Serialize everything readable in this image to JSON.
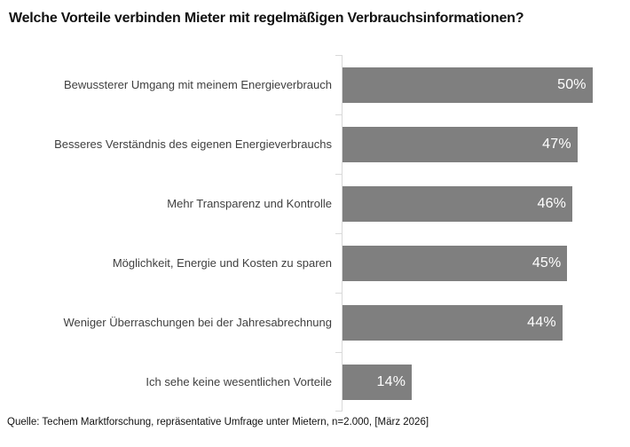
{
  "title": "Welche Vorteile verbinden Mieter mit regelmäßigen Verbrauchsinformationen?",
  "source_note": "Quelle: Techem Marktforschung, repräsentative Umfrage unter Mietern, n=2.000, [März 2026]",
  "colors": {
    "bar": "#7f7f7f",
    "axis": "#d9d9d9",
    "category_label": "#3f3f3f",
    "value_label": "#ffffff",
    "title": "#111111",
    "source": "#111111",
    "background": "#ffffff"
  },
  "chart_data": {
    "type": "bar",
    "orientation": "horizontal",
    "title": "Welche Vorteile verbinden Mieter mit regelmäßigen Verbrauchsinformationen?",
    "categories": [
      "Bewussterer Umgang mit meinem Energieverbrauch",
      "Besseres Verständnis des eigenen Energieverbrauchs",
      "Mehr Transparenz und Kontrolle",
      "Möglichkeit, Energie und Kosten zu sparen",
      "Weniger Überraschungen bei der Jahresabrechnung",
      "Ich sehe keine wesentlichen Vorteile"
    ],
    "values": [
      50,
      47,
      46,
      45,
      44,
      14
    ],
    "value_suffix": "%",
    "value_labels": [
      "50%",
      "47%",
      "46%",
      "45%",
      "44%",
      "14%"
    ],
    "xlabel": "",
    "ylabel": "",
    "xlim": [
      0,
      55
    ],
    "grid": false,
    "legend": false,
    "data_labels": "inside-end"
  }
}
